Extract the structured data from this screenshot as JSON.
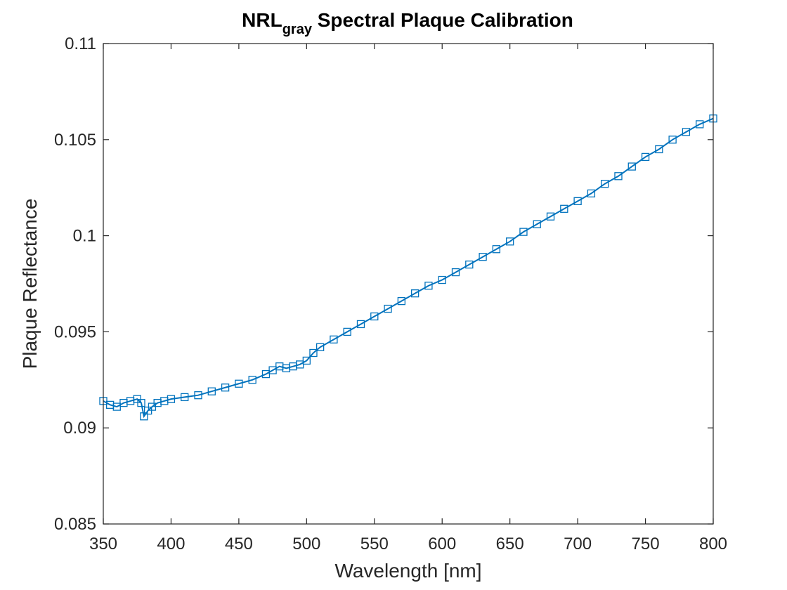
{
  "chart_data": {
    "type": "line",
    "title": "NRL",
    "title_subscript": "gray",
    "title_rest": " Spectral Plaque Calibration",
    "xlabel": "Wavelength [nm]",
    "ylabel": "Plaque Reflectance",
    "xlim": [
      350,
      800
    ],
    "ylim": [
      0.085,
      0.11
    ],
    "xticks": [
      350,
      400,
      450,
      500,
      550,
      600,
      650,
      700,
      750,
      800
    ],
    "xtick_labels": [
      "350",
      "400",
      "450",
      "500",
      "550",
      "600",
      "650",
      "700",
      "750",
      "800"
    ],
    "yticks": [
      0.085,
      0.09,
      0.095,
      0.1,
      0.105,
      0.11
    ],
    "ytick_labels": [
      "0.085",
      "0.09",
      "0.095",
      "0.1",
      "0.105",
      "0.11"
    ],
    "grid": false,
    "marker": "square",
    "series": [
      {
        "color": "#0072BD",
        "x": [
          350,
          355,
          360,
          365,
          370,
          375,
          378,
          380,
          383,
          386,
          390,
          395,
          400,
          410,
          420,
          430,
          440,
          450,
          460,
          470,
          475,
          480,
          485,
          490,
          495,
          500,
          505,
          510,
          520,
          530,
          540,
          550,
          560,
          570,
          580,
          590,
          600,
          610,
          620,
          630,
          640,
          650,
          660,
          670,
          680,
          690,
          700,
          710,
          720,
          730,
          740,
          750,
          760,
          770,
          780,
          790,
          800
        ],
        "y": [
          0.0914,
          0.0912,
          0.0911,
          0.0913,
          0.0914,
          0.0915,
          0.0913,
          0.0906,
          0.0909,
          0.0911,
          0.0913,
          0.0914,
          0.0915,
          0.0916,
          0.0917,
          0.0919,
          0.0921,
          0.0923,
          0.0925,
          0.0928,
          0.093,
          0.0932,
          0.0931,
          0.0932,
          0.0933,
          0.0935,
          0.0939,
          0.0942,
          0.0946,
          0.095,
          0.0954,
          0.0958,
          0.0962,
          0.0966,
          0.097,
          0.0974,
          0.0977,
          0.0981,
          0.0985,
          0.0989,
          0.0993,
          0.0997,
          0.1002,
          0.1006,
          0.101,
          0.1014,
          0.1018,
          0.1022,
          0.1027,
          0.1031,
          0.1036,
          0.1041,
          0.1045,
          0.105,
          0.1054,
          0.1058,
          0.1061
        ]
      }
    ]
  }
}
